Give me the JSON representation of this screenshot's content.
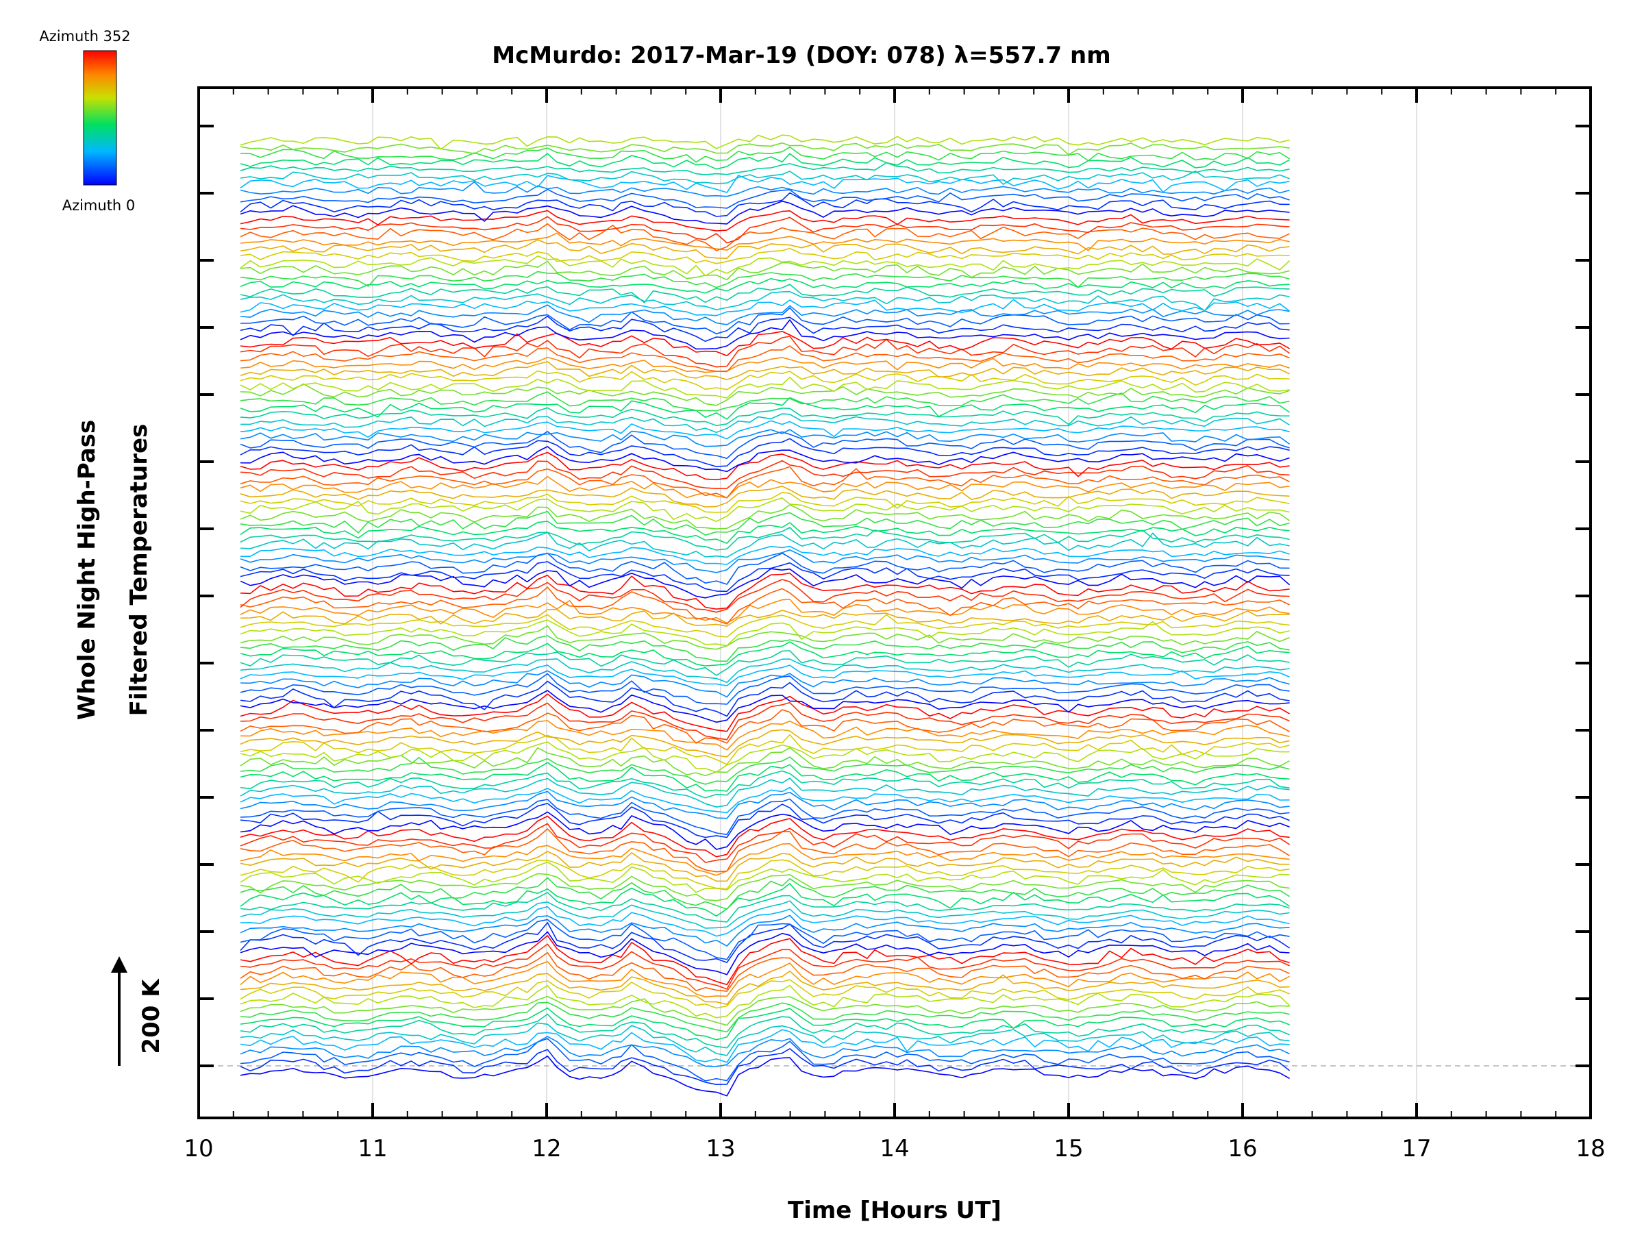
{
  "chart_data": {
    "type": "line",
    "title": "McMurdo: 2017-Mar-19 (DOY: 078) λ=557.7 nm",
    "xlabel": "Time [Hours UT]",
    "ylabel_line1": "Whole Night High-Pass",
    "ylabel_line2": "Filtered Temperatures",
    "xlim": [
      10,
      18
    ],
    "x_ticks": [
      "10",
      "11",
      "12",
      "13",
      "14",
      "15",
      "16",
      "17",
      "18"
    ],
    "scale_bar_label": "200 K",
    "colorbar": {
      "max_label": "Azimuth 352",
      "min_label": "Azimuth 0"
    },
    "data_time_range": [
      10.24,
      16.27
    ],
    "series_count": 130,
    "azimuth_range": [
      0,
      352
    ],
    "groups": 8,
    "common_features": [
      {
        "time": 12.0,
        "shape": "peak"
      },
      {
        "time": 12.5,
        "shape": "peak"
      },
      {
        "time": 13.0,
        "shape": "trough"
      },
      {
        "time": 13.42,
        "shape": "peak"
      }
    ]
  }
}
